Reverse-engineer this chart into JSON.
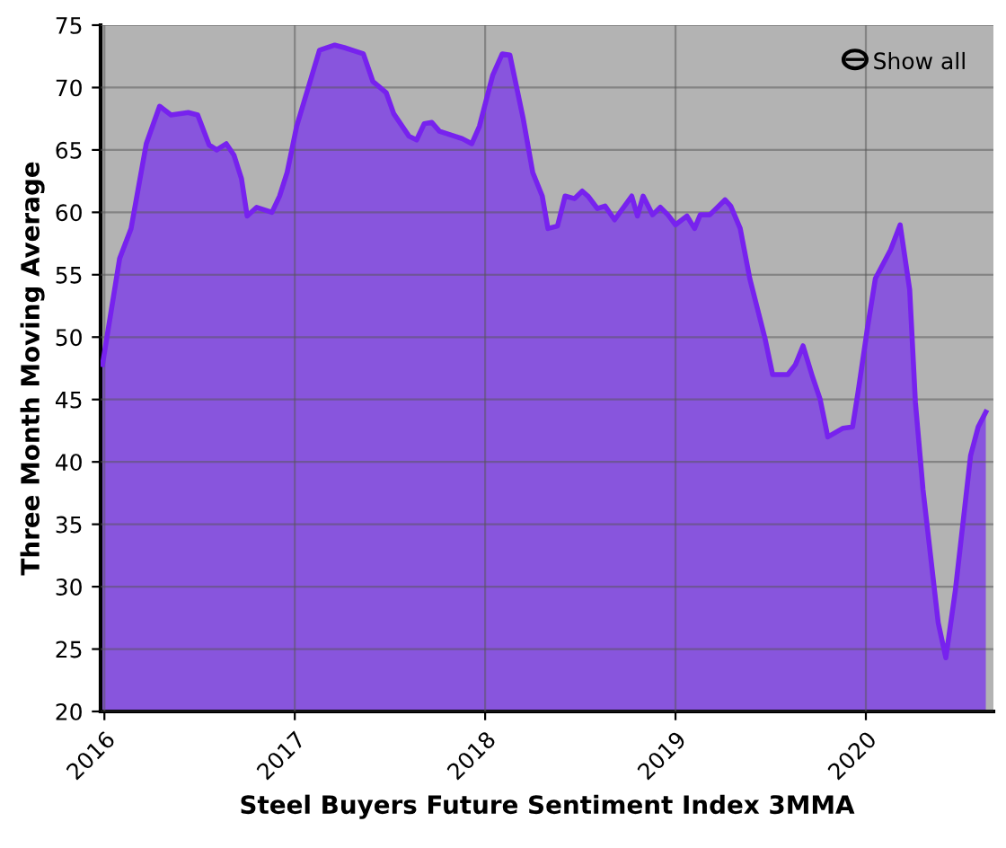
{
  "chart_data": {
    "type": "area",
    "xlabel": "Steel Buyers Future Sentiment Index 3MMA",
    "ylabel": "Three Month Moving Average",
    "annotations": [
      "Show all"
    ],
    "x": [
      2015.99,
      2016.08,
      2016.14,
      2016.22,
      2016.29,
      2016.35,
      2016.44,
      2016.49,
      2016.55,
      2016.59,
      2016.64,
      2016.68,
      2016.72,
      2016.75,
      2016.8,
      2016.88,
      2016.92,
      2016.96,
      2017.01,
      2017.13,
      2017.21,
      2017.26,
      2017.32,
      2017.36,
      2017.41,
      2017.48,
      2017.52,
      2017.6,
      2017.64,
      2017.68,
      2017.72,
      2017.76,
      2017.84,
      2017.88,
      2017.93,
      2017.97,
      2018.04,
      2018.09,
      2018.13,
      2018.2,
      2018.25,
      2018.3,
      2018.33,
      2018.38,
      2018.42,
      2018.47,
      2018.51,
      2018.54,
      2018.59,
      2018.63,
      2018.68,
      2018.77,
      2018.8,
      2018.83,
      2018.88,
      2018.92,
      2018.96,
      2019.0,
      2019.06,
      2019.1,
      2019.13,
      2019.18,
      2019.26,
      2019.29,
      2019.34,
      2019.39,
      2019.47,
      2019.51,
      2019.59,
      2019.63,
      2019.67,
      2019.72,
      2019.76,
      2019.8,
      2019.88,
      2019.93,
      2019.96,
      2020.01,
      2020.05,
      2020.13,
      2020.18,
      2020.23,
      2020.26,
      2020.3,
      2020.38,
      2020.42,
      2020.47,
      2020.55,
      2020.59,
      2020.63
    ],
    "series": [
      {
        "color": "#7722ee",
        "values": [
          47.8,
          56.3,
          58.7,
          65.5,
          68.5,
          67.8,
          68.0,
          67.8,
          65.4,
          65.0,
          65.5,
          64.6,
          62.7,
          59.7,
          60.4,
          60.0,
          61.3,
          63.2,
          66.9,
          73.0,
          73.4,
          73.2,
          72.9,
          72.7,
          70.5,
          69.6,
          67.9,
          66.1,
          65.8,
          67.1,
          67.2,
          66.5,
          66.1,
          65.9,
          65.5,
          66.9,
          71.0,
          72.7,
          72.6,
          67.5,
          63.2,
          61.3,
          58.7,
          58.9,
          61.3,
          61.1,
          61.7,
          61.3,
          60.3,
          60.5,
          59.4,
          61.3,
          59.7,
          61.3,
          59.8,
          60.4,
          59.8,
          59.0,
          59.7,
          58.7,
          59.8,
          59.8,
          61.0,
          60.5,
          58.7,
          54.7,
          49.9,
          47.0,
          47.0,
          47.8,
          49.3,
          46.8,
          45.0,
          42.0,
          42.7,
          42.8,
          45.7,
          50.9,
          54.7,
          57.0,
          59.0,
          53.8,
          44.8,
          37.8,
          27.1,
          24.3,
          29.7,
          40.5,
          42.8,
          44.0
        ]
      }
    ],
    "xlim": [
      2015.98,
      2020.67
    ],
    "xticks": [
      {
        "value": 2016,
        "label": "2016"
      },
      {
        "value": 2017,
        "label": "2017"
      },
      {
        "value": 2018,
        "label": "2018"
      },
      {
        "value": 2019,
        "label": "2019"
      },
      {
        "value": 2020,
        "label": "2020"
      }
    ],
    "ylim": [
      20,
      75
    ],
    "yticks": [
      20,
      25,
      30,
      35,
      40,
      45,
      50,
      55,
      60,
      65,
      70,
      75
    ],
    "grid": true
  }
}
